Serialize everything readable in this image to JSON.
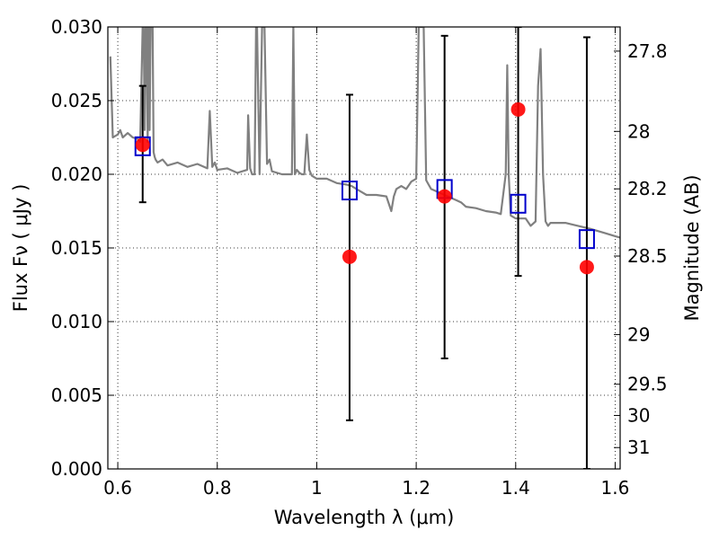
{
  "chart_data": {
    "type": "scatter",
    "xlabel": "Wavelength  λ (μm)",
    "ylabel": "Flux  Fν  ( μJy )",
    "y2label": "Magnitude (AB)",
    "xlim": [
      0.58,
      1.61
    ],
    "ylim": [
      0.0,
      0.03
    ],
    "grid": true,
    "x_ticks": [
      0.6,
      0.8,
      1.0,
      1.2,
      1.4,
      1.6
    ],
    "x_tick_labels": [
      "0.6",
      "0.8",
      "1",
      "1.2",
      "1.4",
      "1.6"
    ],
    "y_ticks": [
      0.0,
      0.005,
      0.01,
      0.015,
      0.02,
      0.025,
      0.03
    ],
    "y_tick_labels": [
      "0.000",
      "0.005",
      "0.010",
      "0.015",
      "0.020",
      "0.025",
      "0.030"
    ],
    "y2_ticks": [
      {
        "flux": 0.02836,
        "label": "27.8"
      },
      {
        "flux": 0.02291,
        "label": "28"
      },
      {
        "flux": 0.01901,
        "label": "28.2"
      },
      {
        "flux": 0.01445,
        "label": "28.5"
      },
      {
        "flux": 0.00912,
        "label": "29"
      },
      {
        "flux": 0.00575,
        "label": "29.5"
      },
      {
        "flux": 0.00363,
        "label": "30"
      },
      {
        "flux": 0.00145,
        "label": "31"
      }
    ],
    "observed": {
      "x": [
        0.65,
        1.066,
        1.257,
        1.405,
        1.543
      ],
      "y": [
        0.022,
        0.0144,
        0.0185,
        0.0244,
        0.0137
      ],
      "yerr_low": [
        0.0181,
        0.0033,
        0.0075,
        0.0131,
        0.0
      ],
      "yerr_high": [
        0.026,
        0.0254,
        0.0294,
        0.03,
        0.0293
      ],
      "color": "#ff0000"
    },
    "model_points": {
      "x": [
        0.65,
        1.066,
        1.257,
        1.405,
        1.543
      ],
      "y": [
        0.0219,
        0.0189,
        0.019,
        0.018,
        0.0156
      ],
      "color": "#0000cc"
    },
    "model_spectrum": {
      "color": "#808080",
      "x": [
        0.585,
        0.59,
        0.6,
        0.605,
        0.61,
        0.62,
        0.63,
        0.64,
        0.645,
        0.65,
        0.652,
        0.654,
        0.656,
        0.658,
        0.66,
        0.662,
        0.664,
        0.666,
        0.668,
        0.67,
        0.672,
        0.674,
        0.676,
        0.68,
        0.69,
        0.7,
        0.72,
        0.74,
        0.76,
        0.78,
        0.785,
        0.79,
        0.795,
        0.8,
        0.82,
        0.84,
        0.86,
        0.862,
        0.866,
        0.87,
        0.875,
        0.878,
        0.88,
        0.885,
        0.89,
        0.895,
        0.9,
        0.905,
        0.91,
        0.93,
        0.95,
        0.953,
        0.956,
        0.96,
        0.965,
        0.97,
        0.975,
        0.98,
        0.985,
        0.99,
        1.0,
        1.02,
        1.04,
        1.06,
        1.07,
        1.08,
        1.09,
        1.1,
        1.12,
        1.14,
        1.15,
        1.155,
        1.16,
        1.17,
        1.18,
        1.19,
        1.2,
        1.205,
        1.21,
        1.215,
        1.22,
        1.225,
        1.23,
        1.25,
        1.27,
        1.29,
        1.3,
        1.32,
        1.34,
        1.36,
        1.37,
        1.38,
        1.383,
        1.386,
        1.39,
        1.4,
        1.42,
        1.43,
        1.44,
        1.445,
        1.45,
        1.455,
        1.46,
        1.465,
        1.47,
        1.5,
        1.55,
        1.58,
        1.6,
        1.61
      ],
      "y": [
        0.028,
        0.0225,
        0.0227,
        0.023,
        0.0225,
        0.0228,
        0.0225,
        0.0224,
        0.0222,
        0.03,
        0.03,
        0.023,
        0.03,
        0.03,
        0.0222,
        0.03,
        0.023,
        0.03,
        0.03,
        0.03,
        0.0215,
        0.0212,
        0.021,
        0.0208,
        0.021,
        0.0206,
        0.0208,
        0.0205,
        0.0207,
        0.0204,
        0.0243,
        0.0205,
        0.0208,
        0.0203,
        0.0204,
        0.0201,
        0.0203,
        0.024,
        0.0204,
        0.02,
        0.02,
        0.03,
        0.03,
        0.02,
        0.03,
        0.03,
        0.0207,
        0.021,
        0.0202,
        0.02,
        0.02,
        0.03,
        0.02,
        0.0203,
        0.0201,
        0.02,
        0.02,
        0.0227,
        0.0203,
        0.0199,
        0.0197,
        0.0197,
        0.0194,
        0.0193,
        0.0192,
        0.019,
        0.0188,
        0.0186,
        0.0186,
        0.0185,
        0.0175,
        0.0185,
        0.019,
        0.0192,
        0.019,
        0.0195,
        0.0197,
        0.03,
        0.03,
        0.03,
        0.0196,
        0.0193,
        0.019,
        0.0187,
        0.0184,
        0.0181,
        0.0178,
        0.0177,
        0.0175,
        0.0174,
        0.0173,
        0.02,
        0.0274,
        0.02,
        0.0172,
        0.017,
        0.017,
        0.0165,
        0.0168,
        0.026,
        0.0285,
        0.02,
        0.0168,
        0.0165,
        0.0167,
        0.0167,
        0.0163,
        0.016,
        0.0158,
        0.0157
      ]
    }
  }
}
